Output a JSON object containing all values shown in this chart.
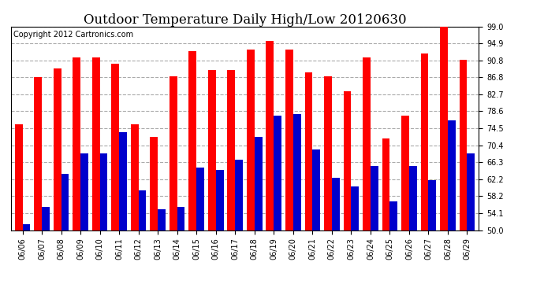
{
  "title": "Outdoor Temperature Daily High/Low 20120630",
  "copyright": "Copyright 2012 Cartronics.com",
  "dates": [
    "06/06",
    "06/07",
    "06/08",
    "06/09",
    "06/10",
    "06/11",
    "06/12",
    "06/13",
    "06/14",
    "06/15",
    "06/16",
    "06/17",
    "06/18",
    "06/19",
    "06/20",
    "06/21",
    "06/22",
    "06/23",
    "06/24",
    "06/25",
    "06/26",
    "06/27",
    "06/28",
    "06/29"
  ],
  "highs": [
    75.5,
    86.8,
    89.0,
    91.5,
    91.5,
    90.0,
    75.5,
    72.5,
    87.0,
    93.0,
    88.5,
    88.5,
    93.5,
    95.5,
    93.5,
    88.0,
    87.0,
    83.5,
    91.5,
    72.0,
    77.5,
    92.5,
    99.0,
    91.0
  ],
  "lows": [
    51.5,
    55.5,
    63.5,
    68.5,
    68.5,
    73.5,
    59.5,
    55.0,
    55.5,
    65.0,
    64.5,
    67.0,
    72.5,
    77.5,
    78.0,
    69.5,
    62.5,
    60.5,
    65.5,
    57.0,
    65.5,
    62.0,
    76.5,
    68.5
  ],
  "high_color": "#ff0000",
  "low_color": "#0000cc",
  "background_color": "#ffffff",
  "ymin": 50.0,
  "ymax": 99.0,
  "yticks": [
    50.0,
    54.1,
    58.2,
    62.2,
    66.3,
    70.4,
    74.5,
    78.6,
    82.7,
    86.8,
    90.8,
    94.9,
    99.0
  ],
  "grid_color": "#aaaaaa",
  "title_fontsize": 12,
  "copyright_fontsize": 7,
  "tick_fontsize": 7,
  "bar_width": 0.4
}
